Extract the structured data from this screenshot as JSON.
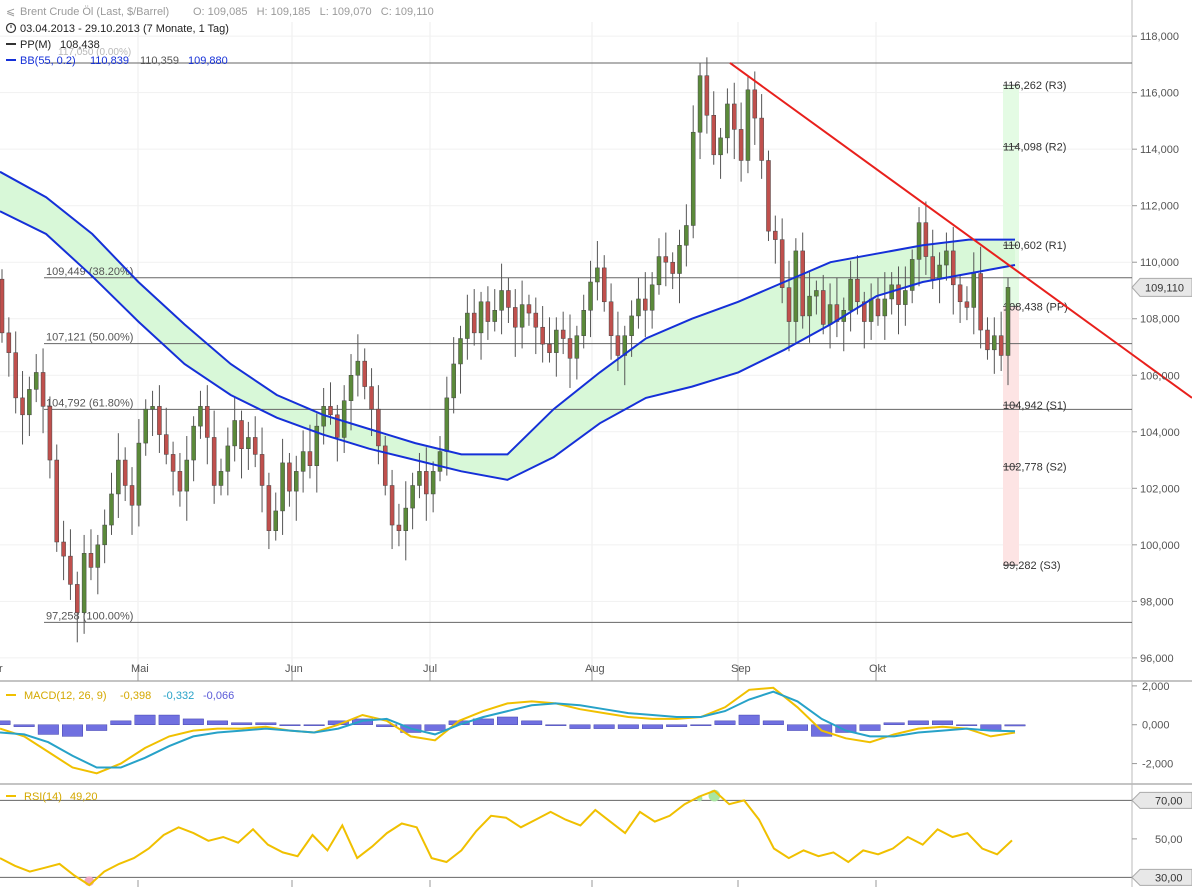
{
  "header": {
    "instrument": "Brent Crude Öl (Last, $/Barrel)",
    "ohlc": "O: 109,085   H: 109,185   L: 109,070   C: 109,110",
    "period": "03.04.2013 - 29.10.2013 (7 Monate, 1 Tag)",
    "pp_label": "PP(M)",
    "pp_value": "108,438",
    "bb_label": "BB(55, 0.2)",
    "bb_upper": "110,839",
    "bb_mid": "110,359",
    "bb_lower": "109,880"
  },
  "colors": {
    "up": "#5b8a3a",
    "down": "#c0504d",
    "bb": "#1530d8",
    "band_fill": "#d8f8d8",
    "trendline": "#e8201c",
    "macd": "#f0c000",
    "signal": "#27a2c8",
    "histogram": "#7070e0",
    "rsi": "#f0c000"
  },
  "chart_data": [
    {
      "type": "candlestick",
      "title": "Brent Crude Öl (Last, $/Barrel)",
      "ylim": [
        95.5,
        118.5
      ],
      "y_ticks": [
        "118,000",
        "116,000",
        "114,000",
        "112,000",
        "110,000",
        "108,000",
        "106,000",
        "104,000",
        "102,000",
        "100,000",
        "98,000",
        "96,000"
      ],
      "y_tick_values": [
        118,
        116,
        114,
        112,
        110,
        108,
        106,
        104,
        102,
        100,
        98,
        96
      ],
      "x_labels": [
        "Mai",
        "Jun",
        "Jul",
        "Aug",
        "Sep",
        "Okt"
      ],
      "x_start_label": "r",
      "last_price": "109,110",
      "last_price_value": 109.11,
      "open_first": 109.4,
      "closes": [
        107.5,
        106.8,
        105.2,
        104.6,
        105.5,
        106.1,
        104.9,
        103.0,
        100.1,
        99.6,
        98.6,
        97.6,
        99.7,
        99.2,
        100.0,
        100.7,
        101.8,
        103.0,
        102.1,
        101.4,
        103.6,
        104.8,
        104.9,
        103.9,
        103.2,
        102.6,
        101.9,
        103.0,
        104.2,
        104.9,
        103.8,
        102.1,
        102.6,
        103.5,
        104.4,
        103.4,
        103.8,
        103.2,
        102.1,
        100.5,
        101.2,
        102.9,
        101.9,
        102.6,
        103.3,
        102.8,
        104.2,
        104.9,
        104.6,
        103.8,
        105.1,
        106.0,
        106.5,
        105.6,
        104.8,
        103.5,
        102.1,
        100.7,
        100.5,
        101.3,
        102.1,
        102.6,
        101.8,
        102.6,
        103.3,
        105.2,
        106.4,
        107.3,
        108.2,
        107.5,
        108.6,
        107.9,
        108.3,
        109.0,
        108.4,
        107.7,
        108.5,
        108.2,
        107.7,
        107.1,
        106.8,
        107.6,
        107.3,
        106.6,
        107.4,
        108.3,
        109.3,
        109.8,
        108.6,
        107.4,
        106.7,
        107.4,
        108.1,
        108.7,
        108.3,
        109.2,
        110.2,
        110.0,
        109.6,
        110.6,
        111.3,
        114.6,
        116.6,
        115.2,
        113.8,
        114.4,
        115.6,
        114.7,
        113.6,
        116.1,
        115.1,
        113.6,
        111.1,
        110.8,
        109.1,
        107.9,
        110.4,
        108.1,
        108.8,
        109.0,
        107.8,
        108.5,
        107.9,
        108.3,
        109.4,
        108.6,
        107.9,
        108.7,
        108.1,
        108.7,
        109.2,
        108.5,
        109.0,
        110.1,
        111.4,
        110.2,
        109.4,
        109.9,
        110.4,
        109.2,
        108.6,
        108.4,
        109.6,
        107.6,
        106.9,
        107.4,
        106.7,
        109.11
      ],
      "support_resistance": [
        {
          "label": "116,262 (R3)",
          "value": 116.262
        },
        {
          "label": "114,098 (R2)",
          "value": 114.098
        },
        {
          "label": "110,602 (R1)",
          "value": 110.602
        },
        {
          "label": "108,438 (PP)",
          "value": 108.438
        },
        {
          "label": "104,942 (S1)",
          "value": 104.942
        },
        {
          "label": "102,778 (S2)",
          "value": 102.778
        },
        {
          "label": "99,282 (S3)",
          "value": 99.282
        }
      ],
      "fibonacci": [
        {
          "label": "109,449 (38.20%)",
          "value": 109.449
        },
        {
          "label": "107,121 (50.00%)",
          "value": 107.121
        },
        {
          "label": "104,792 (61.80%)",
          "value": 104.792
        },
        {
          "label": "97,258 (100.00%)",
          "value": 97.258
        }
      ],
      "fib_top_label": "117,050 (0.00%)",
      "fib_top_value": 117.05,
      "bollinger": {
        "upper": [
          113.2,
          112.3,
          111.0,
          109.3,
          107.8,
          106.4,
          105.3,
          104.6,
          104.1,
          103.6,
          103.2,
          103.2,
          104.8,
          106.1,
          107.3,
          108.0,
          108.6,
          109.3,
          110.0,
          110.3,
          110.6,
          110.8,
          110.8
        ],
        "lower": [
          111.8,
          111.0,
          109.5,
          107.9,
          106.4,
          105.3,
          104.5,
          103.9,
          103.4,
          103.0,
          102.6,
          102.3,
          103.1,
          104.3,
          105.2,
          105.6,
          106.1,
          106.9,
          107.8,
          108.8,
          109.3,
          109.6,
          109.9
        ]
      },
      "trendline": {
        "from": 117.05,
        "to": 105.2
      }
    },
    {
      "type": "line",
      "title": "MACD(12, 26, 9)",
      "values_label": [
        "-0,398",
        "-0,332",
        "-0,066"
      ],
      "ylim": [
        -3.0,
        2.2
      ],
      "y_ticks": [
        "2,000",
        "0,000",
        "-2,000"
      ],
      "y_tick_values": [
        2,
        0,
        -2
      ],
      "series": [
        {
          "name": "MACD",
          "values": [
            -0.2,
            -0.6,
            -1.4,
            -2.2,
            -2.5,
            -2.0,
            -1.2,
            -0.6,
            -0.3,
            -0.2,
            -0.2,
            -0.1,
            -0.3,
            -0.4,
            0.0,
            0.5,
            0.2,
            -0.6,
            -0.8,
            0.2,
            0.7,
            1.1,
            1.2,
            1.1,
            0.8,
            0.6,
            0.4,
            0.3,
            0.3,
            0.4,
            0.9,
            1.8,
            1.9,
            0.9,
            -0.3,
            -0.7,
            -0.9,
            -0.5,
            -0.2,
            -0.1,
            -0.2,
            -0.6,
            -0.398
          ]
        },
        {
          "name": "Signal",
          "values": [
            -0.4,
            -0.5,
            -0.9,
            -1.6,
            -2.2,
            -2.2,
            -1.7,
            -1.1,
            -0.6,
            -0.4,
            -0.3,
            -0.2,
            -0.3,
            -0.4,
            -0.2,
            0.2,
            0.3,
            -0.2,
            -0.5,
            0.0,
            0.4,
            0.7,
            1.0,
            1.1,
            1.0,
            0.8,
            0.6,
            0.5,
            0.4,
            0.4,
            0.7,
            1.3,
            1.7,
            1.2,
            0.3,
            -0.3,
            -0.6,
            -0.6,
            -0.4,
            -0.3,
            -0.2,
            -0.3,
            -0.332
          ]
        },
        {
          "name": "Histogram",
          "values": [
            0.2,
            -0.1,
            -0.5,
            -0.6,
            -0.3,
            0.2,
            0.5,
            0.5,
            0.3,
            0.2,
            0.1,
            0.1,
            0.0,
            0.0,
            0.2,
            0.3,
            -0.1,
            -0.4,
            -0.3,
            0.2,
            0.3,
            0.4,
            0.2,
            0.0,
            -0.2,
            -0.2,
            -0.2,
            -0.2,
            -0.1,
            0.0,
            0.2,
            0.5,
            0.2,
            -0.3,
            -0.6,
            -0.4,
            -0.3,
            0.1,
            0.2,
            0.2,
            0.0,
            -0.3,
            -0.066
          ]
        }
      ]
    },
    {
      "type": "line",
      "title": "RSI(14)",
      "value_label": "49,20",
      "ylim": [
        25,
        78
      ],
      "y_ticks": [
        "70,00",
        "50,00",
        "30,00"
      ],
      "y_tick_values": [
        70,
        50,
        30
      ],
      "series": [
        {
          "name": "RSI",
          "values": [
            40,
            36,
            33,
            35,
            37,
            31,
            26,
            33,
            37,
            40,
            45,
            52,
            56,
            53,
            49,
            51,
            48,
            55,
            47,
            43,
            41,
            52,
            44,
            57,
            40,
            46,
            53,
            58,
            56,
            40,
            38,
            44,
            54,
            62,
            61,
            56,
            60,
            64,
            60,
            57,
            65,
            59,
            53,
            64,
            59,
            62,
            68,
            72,
            75,
            68,
            70,
            60,
            45,
            40,
            44,
            41,
            43,
            38,
            44,
            42,
            45,
            51,
            47,
            55,
            51,
            53,
            45,
            42,
            49.2
          ]
        }
      ]
    }
  ]
}
